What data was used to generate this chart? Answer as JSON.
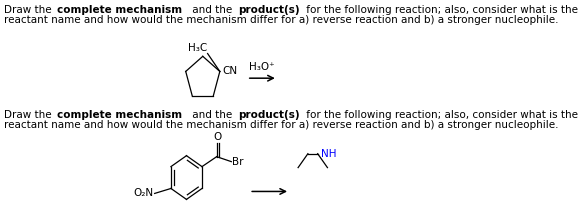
{
  "bg_color": "#ffffff",
  "figsize": [
    5.87,
    2.14
  ],
  "dpi": 100,
  "font_size": 7.5,
  "line1": "Draw the complete mechanism and the product(s) for the following reaction; also, consider what is the",
  "line2": "reactant name and how would the mechanism differ for a) reverse reaction and b) a stronger nucleophile.",
  "bold_words": [
    "complete mechanism",
    "product(s)"
  ],
  "text_color": "#000000"
}
